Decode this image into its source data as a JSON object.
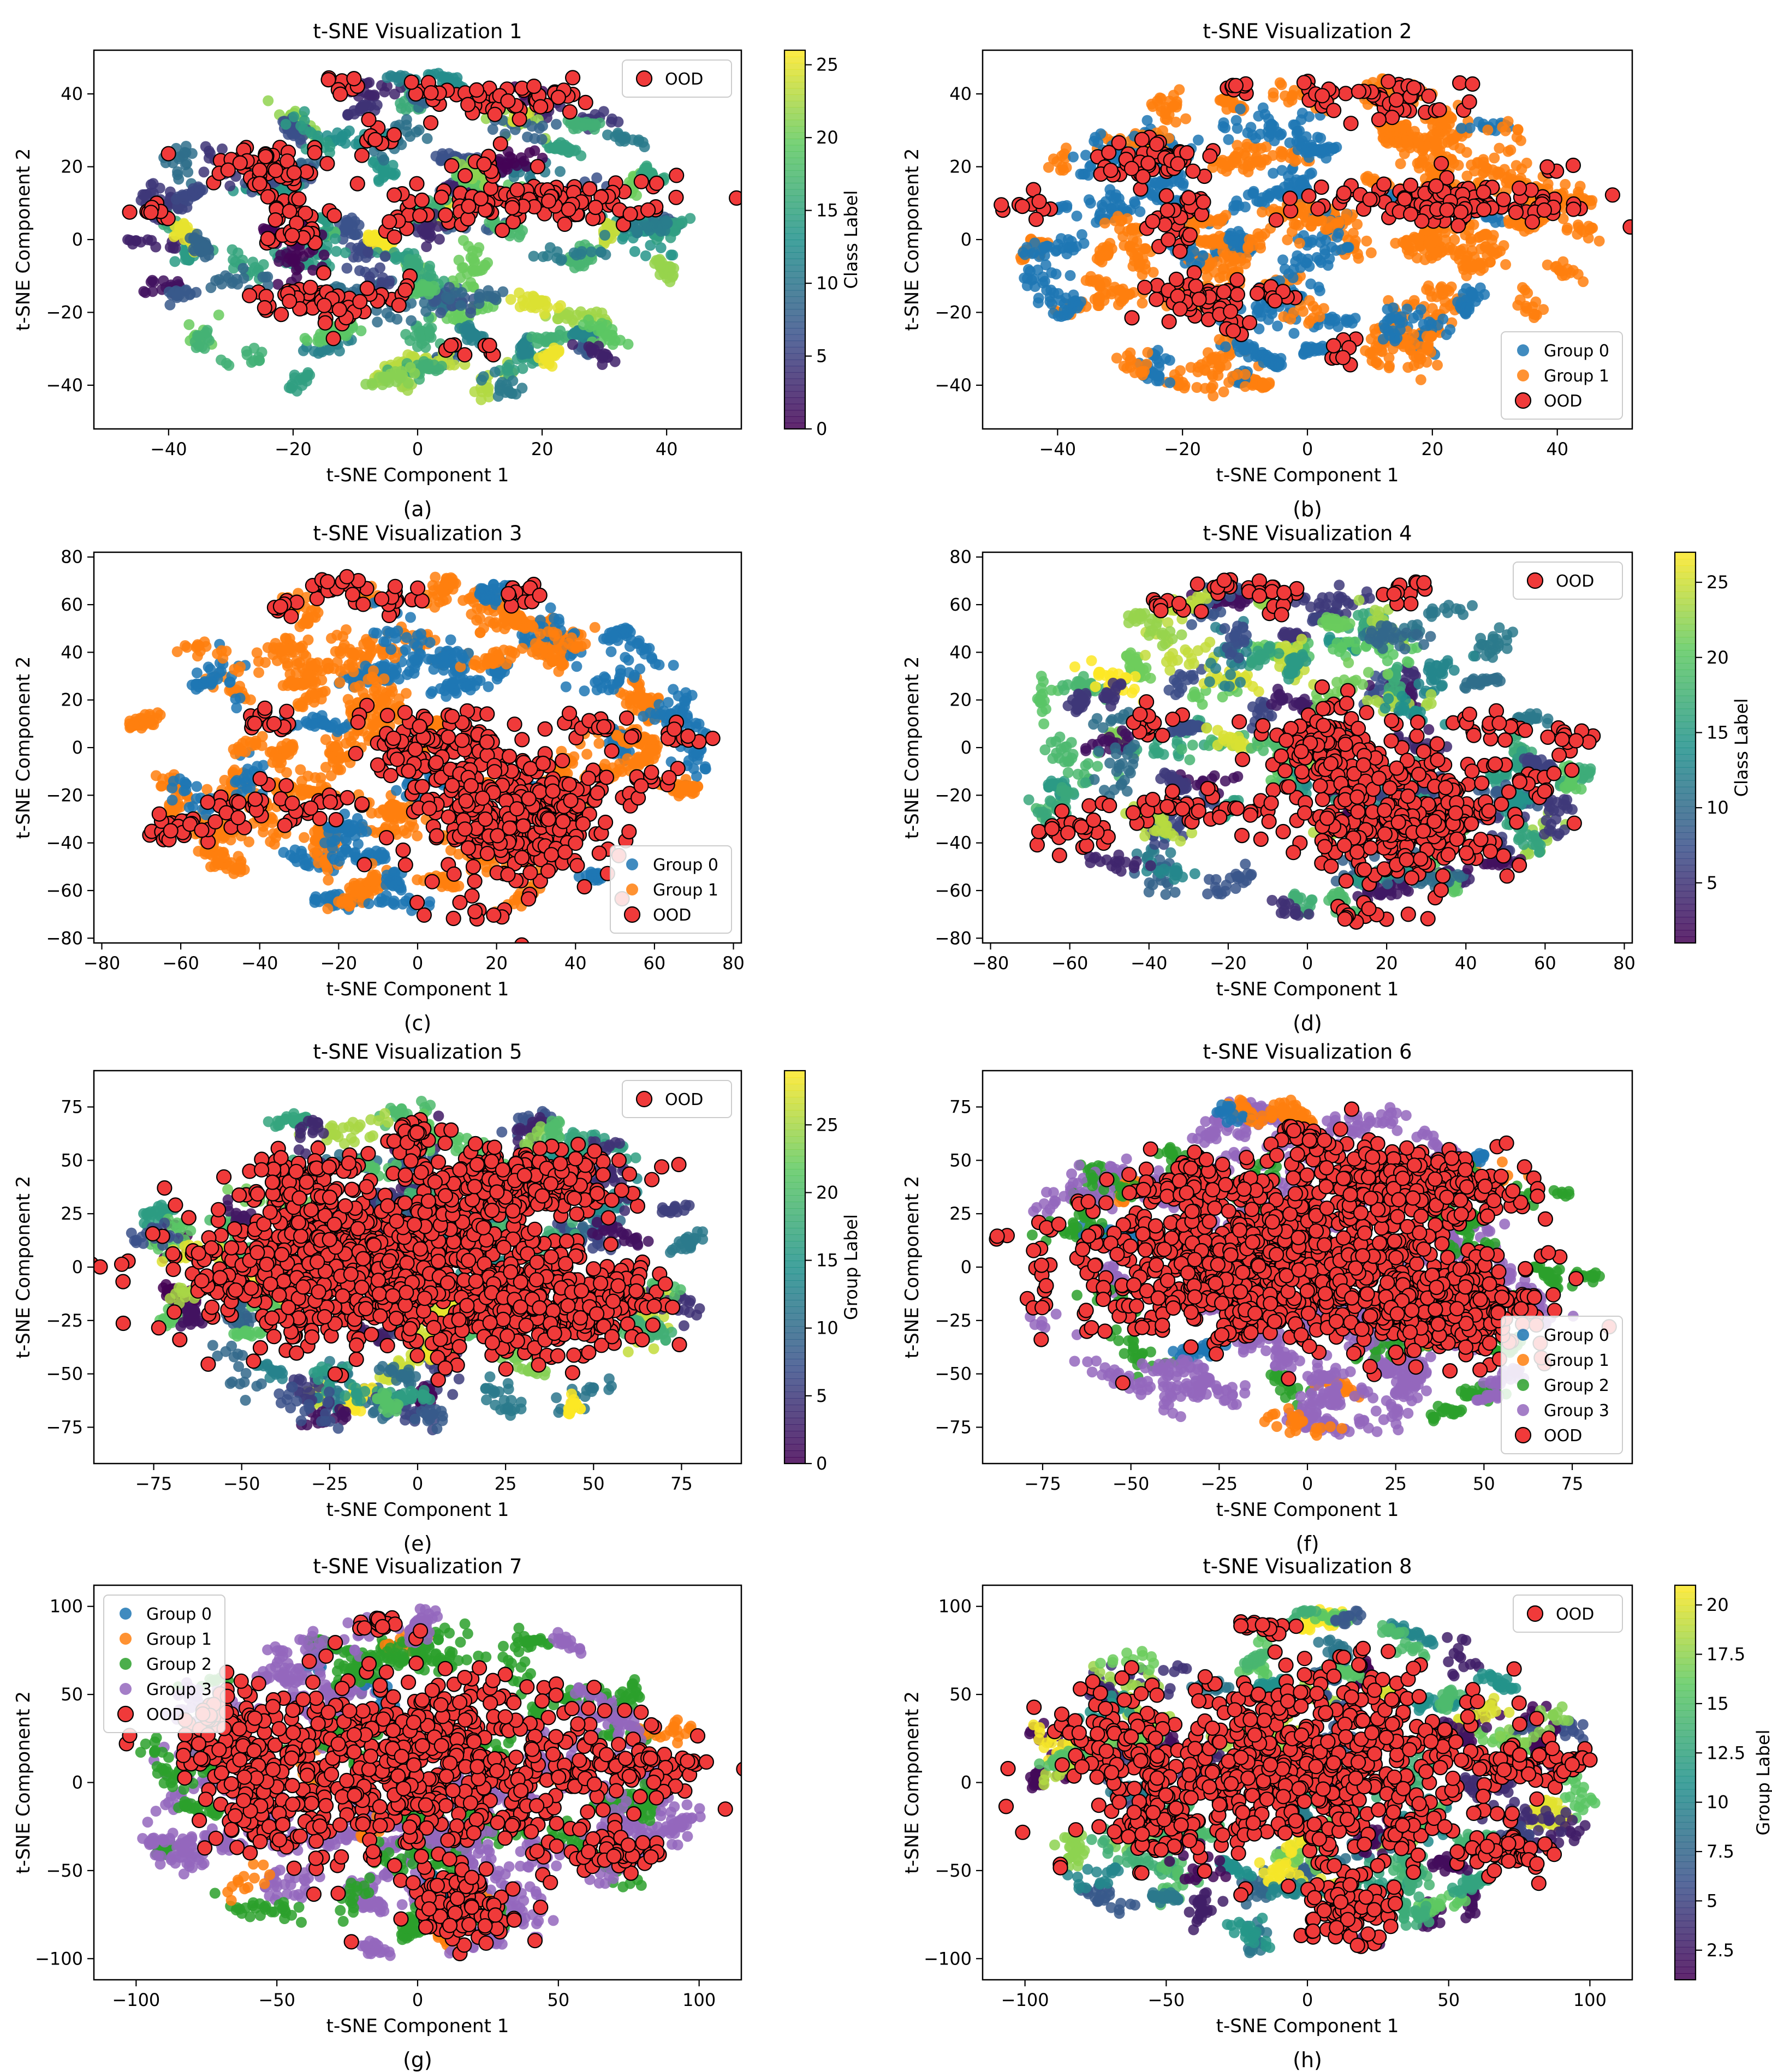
{
  "figure": {
    "common": {
      "xlabel": "t-SNE Component 1",
      "ylabel": "t-SNE Component 2",
      "ood_label": "OOD",
      "colors": {
        "ood_fill": "#f03a3a",
        "ood_edge": "#000000",
        "group0": "#1f77b4",
        "group1": "#ff7f0e",
        "group2": "#2ca02c",
        "group3": "#9467bd"
      }
    }
  },
  "chart_data": [
    {
      "id": "a",
      "caption": "(a)",
      "type": "scatter",
      "title": "t-SNE Visualization 1",
      "xlim": [
        -52,
        52
      ],
      "ylim": [
        -52,
        52
      ],
      "xticks": [
        -40,
        -20,
        0,
        20,
        40
      ],
      "yticks": [
        -40,
        -20,
        0,
        20,
        40
      ],
      "legend": {
        "position": "top-right",
        "entries": [
          "OOD"
        ]
      },
      "colorbar": {
        "label": "Class Label",
        "min": 0,
        "max": 26,
        "ticks": [
          0,
          5,
          10,
          15,
          20,
          25
        ]
      },
      "ood_clusters": [
        [
          -43,
          8,
          3,
          2,
          10
        ],
        [
          -25,
          21,
          6,
          4,
          50
        ],
        [
          -20,
          5,
          4,
          6,
          30
        ],
        [
          -18,
          -16,
          6,
          4,
          45
        ],
        [
          -12,
          -22,
          3,
          3,
          10
        ],
        [
          -7,
          27,
          3,
          3,
          10
        ],
        [
          -5,
          -15,
          4,
          3,
          12
        ],
        [
          -2,
          5,
          3,
          3,
          8
        ],
        [
          2,
          40,
          4,
          3,
          12
        ],
        [
          8,
          -30,
          3,
          3,
          8
        ],
        [
          15,
          38,
          8,
          4,
          40
        ],
        [
          20,
          10,
          16,
          4,
          120
        ],
        [
          10,
          20,
          3,
          3,
          10
        ],
        [
          -12,
          42,
          3,
          2,
          8
        ]
      ]
    },
    {
      "id": "b",
      "caption": "(b)",
      "type": "scatter",
      "title": "t-SNE Visualization 2",
      "xlim": [
        -52,
        52
      ],
      "ylim": [
        -52,
        52
      ],
      "xticks": [
        -40,
        -20,
        0,
        20,
        40
      ],
      "yticks": [
        -40,
        -20,
        0,
        20,
        40
      ],
      "legend": {
        "position": "bottom-right",
        "entries": [
          "Group 0",
          "Group 1",
          "OOD"
        ]
      },
      "groups": [
        "Group 0",
        "Group 1"
      ],
      "ood_clusters": [
        [
          -45,
          10,
          3,
          2,
          10
        ],
        [
          -25,
          21,
          6,
          4,
          50
        ],
        [
          -20,
          5,
          4,
          6,
          30
        ],
        [
          -18,
          -16,
          6,
          4,
          45
        ],
        [
          -12,
          -22,
          3,
          3,
          10
        ],
        [
          -5,
          -15,
          4,
          3,
          12
        ],
        [
          2,
          40,
          4,
          3,
          12
        ],
        [
          8,
          -30,
          3,
          3,
          8
        ],
        [
          15,
          38,
          8,
          4,
          40
        ],
        [
          22,
          10,
          16,
          4,
          120
        ],
        [
          -12,
          42,
          3,
          2,
          8
        ],
        [
          40,
          20,
          2,
          2,
          4
        ]
      ]
    },
    {
      "id": "c",
      "caption": "(c)",
      "type": "scatter",
      "title": "t-SNE Visualization 3",
      "xlim": [
        -82,
        82
      ],
      "ylim": [
        -82,
        82
      ],
      "xticks": [
        -80,
        -60,
        -40,
        -20,
        0,
        20,
        40,
        60,
        80
      ],
      "yticks": [
        -80,
        -60,
        -40,
        -20,
        0,
        20,
        40,
        60,
        80
      ],
      "legend": {
        "position": "bottom-right",
        "entries": [
          "Group 0",
          "Group 1",
          "OOD"
        ]
      },
      "groups": [
        "Group 0",
        "Group 1"
      ],
      "ood_clusters": [
        [
          -35,
          60,
          4,
          3,
          10
        ],
        [
          -20,
          68,
          6,
          3,
          15
        ],
        [
          -8,
          62,
          5,
          6,
          15
        ],
        [
          25,
          65,
          6,
          4,
          12
        ],
        [
          -40,
          10,
          6,
          4,
          15
        ],
        [
          -60,
          -35,
          8,
          5,
          25
        ],
        [
          -30,
          -25,
          15,
          6,
          40
        ],
        [
          5,
          0,
          12,
          12,
          120
        ],
        [
          25,
          -30,
          18,
          20,
          300
        ],
        [
          45,
          10,
          8,
          4,
          15
        ],
        [
          65,
          5,
          6,
          4,
          12
        ],
        [
          58,
          -15,
          4,
          6,
          10
        ],
        [
          15,
          -70,
          8,
          3,
          10
        ]
      ]
    },
    {
      "id": "d",
      "caption": "(d)",
      "type": "scatter",
      "title": "t-SNE Visualization 4",
      "xlim": [
        -82,
        82
      ],
      "ylim": [
        -82,
        82
      ],
      "xticks": [
        -80,
        -60,
        -40,
        -20,
        0,
        20,
        40,
        60,
        80
      ],
      "yticks": [
        -80,
        -60,
        -40,
        -20,
        0,
        20,
        40,
        60,
        80
      ],
      "legend": {
        "position": "top-right",
        "entries": [
          "OOD"
        ]
      },
      "colorbar": {
        "label": "Class Label",
        "min": 1,
        "max": 27,
        "ticks": [
          5,
          10,
          15,
          20,
          25
        ]
      },
      "ood_clusters": [
        [
          -35,
          60,
          4,
          3,
          10
        ],
        [
          -20,
          68,
          6,
          3,
          15
        ],
        [
          -8,
          62,
          5,
          6,
          15
        ],
        [
          25,
          65,
          6,
          4,
          12
        ],
        [
          -40,
          10,
          6,
          4,
          15
        ],
        [
          -60,
          -35,
          8,
          5,
          25
        ],
        [
          -30,
          -25,
          15,
          6,
          40
        ],
        [
          5,
          0,
          12,
          12,
          120
        ],
        [
          25,
          -30,
          18,
          20,
          300
        ],
        [
          45,
          10,
          8,
          4,
          15
        ],
        [
          65,
          5,
          6,
          4,
          12
        ],
        [
          58,
          -15,
          4,
          6,
          10
        ],
        [
          15,
          -70,
          8,
          3,
          10
        ]
      ]
    },
    {
      "id": "e",
      "caption": "(e)",
      "type": "scatter",
      "title": "t-SNE Visualization 5",
      "xlim": [
        -92,
        92
      ],
      "ylim": [
        -92,
        92
      ],
      "xticks": [
        -75,
        -50,
        -25,
        0,
        25,
        50,
        75
      ],
      "yticks": [
        -75,
        -50,
        -25,
        0,
        25,
        50,
        75
      ],
      "legend": {
        "position": "top-right",
        "entries": [
          "OOD"
        ]
      },
      "colorbar": {
        "label": "Group Label",
        "min": 0,
        "max": 29,
        "ticks": [
          0,
          5,
          10,
          15,
          20,
          25
        ]
      },
      "ood_clusters": [
        [
          -10,
          0,
          40,
          25,
          900
        ],
        [
          30,
          40,
          20,
          12,
          250
        ],
        [
          40,
          -20,
          20,
          15,
          300
        ],
        [
          -30,
          40,
          12,
          10,
          80
        ],
        [
          0,
          60,
          6,
          6,
          30
        ]
      ]
    },
    {
      "id": "f",
      "caption": "(f)",
      "type": "scatter",
      "title": "t-SNE Visualization 6",
      "xlim": [
        -92,
        92
      ],
      "ylim": [
        -92,
        92
      ],
      "xticks": [
        -75,
        -50,
        -25,
        0,
        25,
        50,
        75
      ],
      "yticks": [
        -75,
        -50,
        -25,
        0,
        25,
        50,
        75
      ],
      "legend": {
        "position": "bottom-right",
        "entries": [
          "Group 0",
          "Group 1",
          "Group 2",
          "Group 3",
          "OOD"
        ]
      },
      "groups": [
        "Group 0",
        "Group 1",
        "Group 2",
        "Group 3"
      ],
      "ood_clusters": [
        [
          -10,
          0,
          40,
          25,
          900
        ],
        [
          30,
          40,
          20,
          12,
          250
        ],
        [
          40,
          -20,
          20,
          15,
          300
        ],
        [
          -30,
          40,
          12,
          10,
          80
        ],
        [
          0,
          60,
          6,
          6,
          30
        ]
      ]
    },
    {
      "id": "g",
      "caption": "(g)",
      "type": "scatter",
      "title": "t-SNE Visualization 7",
      "xlim": [
        -115,
        115
      ],
      "ylim": [
        -112,
        112
      ],
      "xticks": [
        -100,
        -50,
        0,
        50,
        100
      ],
      "yticks": [
        -100,
        -50,
        0,
        50,
        100
      ],
      "legend": {
        "position": "top-left",
        "entries": [
          "Group 0",
          "Group 1",
          "Group 2",
          "Group 3",
          "OOD"
        ]
      },
      "groups": [
        "Group 0",
        "Group 1",
        "Group 2",
        "Group 3"
      ],
      "ood_clusters": [
        [
          0,
          10,
          50,
          40,
          650
        ],
        [
          -55,
          -20,
          10,
          20,
          60
        ],
        [
          -70,
          25,
          12,
          20,
          70
        ],
        [
          15,
          -70,
          12,
          15,
          90
        ],
        [
          70,
          -40,
          12,
          8,
          50
        ],
        [
          75,
          10,
          15,
          10,
          50
        ],
        [
          -15,
          90,
          6,
          3,
          15
        ],
        [
          98,
          12,
          3,
          3,
          6
        ]
      ]
    },
    {
      "id": "h",
      "caption": "(h)",
      "type": "scatter",
      "title": "t-SNE Visualization 8",
      "xlim": [
        -115,
        115
      ],
      "ylim": [
        -112,
        112
      ],
      "xticks": [
        -100,
        -50,
        0,
        50,
        100
      ],
      "yticks": [
        -100,
        -50,
        0,
        50,
        100
      ],
      "legend": {
        "position": "top-right",
        "entries": [
          "OOD"
        ]
      },
      "colorbar": {
        "label": "Group Label",
        "min": 1,
        "max": 21,
        "ticks": [
          2.5,
          5.0,
          7.5,
          10.0,
          12.5,
          15.0,
          17.5,
          20.0
        ]
      },
      "ood_clusters": [
        [
          0,
          10,
          50,
          40,
          650
        ],
        [
          -55,
          -20,
          10,
          20,
          60
        ],
        [
          -70,
          25,
          12,
          20,
          70
        ],
        [
          15,
          -70,
          12,
          15,
          90
        ],
        [
          70,
          -40,
          12,
          8,
          50
        ],
        [
          75,
          10,
          15,
          10,
          50
        ],
        [
          -15,
          90,
          6,
          3,
          15
        ],
        [
          98,
          12,
          3,
          3,
          6
        ]
      ]
    }
  ]
}
